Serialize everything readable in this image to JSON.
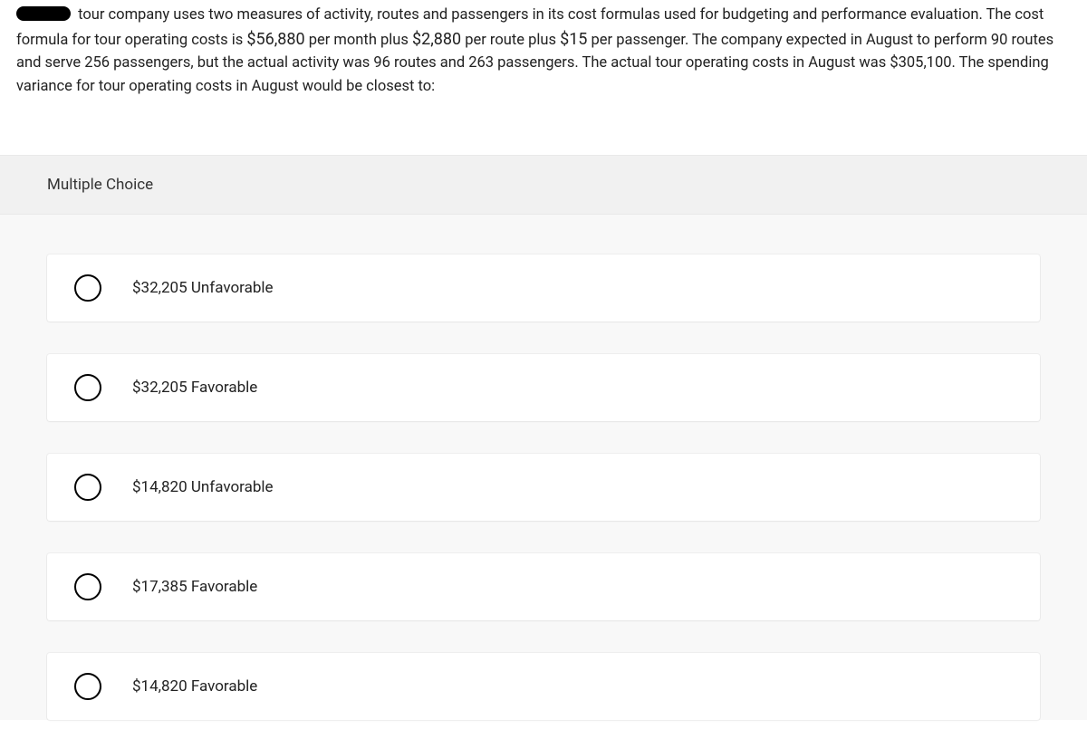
{
  "question": {
    "text_parts": {
      "p1": " tour company uses two measures of activity, routes and passengers in its cost formulas used for budgeting and performance evaluation. The cost formula for tour operating costs is ",
      "n1": "$56,880",
      "p2": " per month plus ",
      "n2": "$2,880",
      "p3": " per route plus ",
      "n3": "$15",
      "p4": " per passenger. The company expected in August to perform 90 routes and serve 256 passengers, but the actual activity was 96 routes and 263 passengers. The actual tour operating costs in August was $305,100. The spending variance for tour operating costs in August would be closest to:"
    }
  },
  "mc_label": "Multiple Choice",
  "choices": [
    {
      "label": "$32,205 Unfavorable"
    },
    {
      "label": "$32,205 Favorable"
    },
    {
      "label": "$14,820 Unfavorable"
    },
    {
      "label": "$17,385 Favorable"
    },
    {
      "label": "$14,820 Favorable"
    }
  ],
  "colors": {
    "page_bg": "#ffffff",
    "header_bg": "#f1f1f1",
    "choices_bg": "#f8f8f8",
    "choice_card_bg": "#ffffff",
    "text": "#222222",
    "radio_border": "#000000"
  }
}
